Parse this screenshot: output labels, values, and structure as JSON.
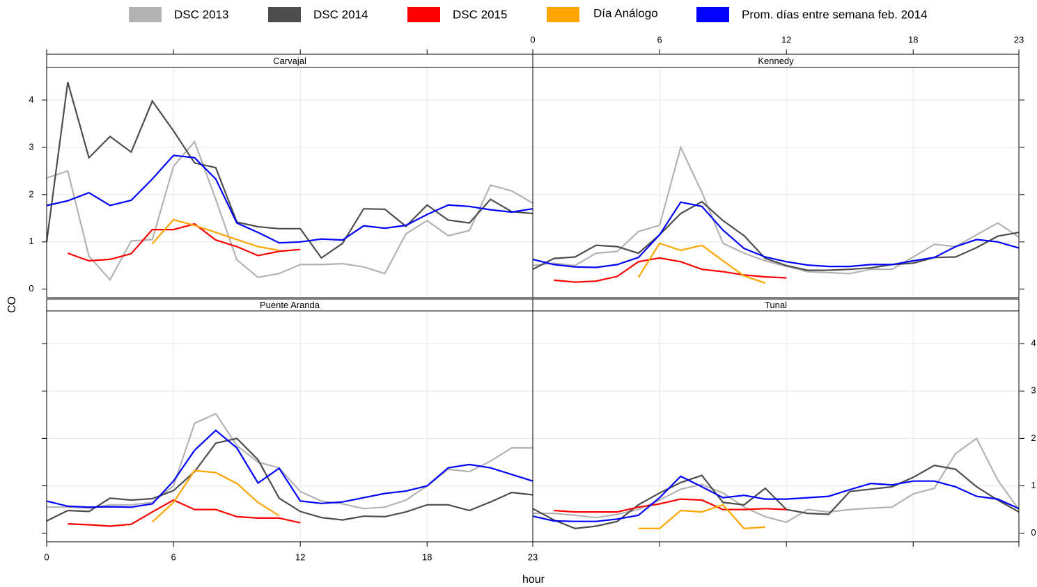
{
  "chart_data": {
    "type": "line",
    "xlabel": "hour",
    "ylabel": "CO",
    "x": [
      0,
      1,
      2,
      3,
      4,
      5,
      6,
      7,
      8,
      9,
      10,
      11,
      12,
      13,
      14,
      15,
      16,
      17,
      18,
      19,
      20,
      21,
      22,
      23
    ],
    "xlim": [
      0,
      23
    ],
    "xticks": [
      0,
      6,
      12,
      18,
      23
    ],
    "ylim": [
      -0.18,
      4.69
    ],
    "yticks": [
      0,
      1,
      2,
      3,
      4
    ],
    "grid": true,
    "series": [
      {
        "name": "DSC 2013",
        "color": "#b3b3b3"
      },
      {
        "name": "DSC 2014",
        "color": "#4d4d4d"
      },
      {
        "name": "DSC 2015",
        "color": "#ff0000"
      },
      {
        "name": "Día Análogo",
        "color": "#ffa500"
      },
      {
        "name": "Prom. días entre semana feb. 2014",
        "color": "#0000ff"
      }
    ],
    "panels": [
      {
        "title": "Carvajal",
        "values": [
          [
            2.35,
            2.5,
            0.7,
            0.2,
            1.02,
            1.05,
            2.6,
            3.12,
            1.9,
            0.62,
            0.25,
            0.33,
            0.52,
            0.52,
            0.54,
            0.47,
            0.33,
            1.17,
            1.45,
            1.13,
            1.24,
            2.2,
            2.08,
            1.82
          ],
          [
            1.0,
            4.38,
            2.78,
            3.23,
            2.9,
            3.98,
            3.35,
            2.67,
            2.57,
            1.42,
            1.32,
            1.28,
            1.28,
            0.66,
            0.97,
            1.7,
            1.69,
            1.33,
            1.78,
            1.46,
            1.4,
            1.9,
            1.64,
            1.6
          ],
          [
            null,
            0.76,
            0.6,
            0.63,
            0.75,
            1.26,
            1.26,
            1.38,
            1.04,
            0.9,
            0.71,
            0.8,
            0.84,
            null,
            null,
            null,
            null,
            null,
            null,
            null,
            null,
            null,
            null,
            null
          ],
          [
            null,
            null,
            null,
            null,
            null,
            0.96,
            1.47,
            1.35,
            1.2,
            1.05,
            0.9,
            0.82,
            null,
            null,
            null,
            null,
            null,
            null,
            null,
            null,
            null,
            null,
            null,
            null
          ],
          [
            1.77,
            1.87,
            2.04,
            1.77,
            1.88,
            2.33,
            2.83,
            2.78,
            2.33,
            1.4,
            1.2,
            0.98,
            1.0,
            1.06,
            1.04,
            1.34,
            1.29,
            1.35,
            1.58,
            1.78,
            1.75,
            1.68,
            1.63,
            1.7
          ]
        ]
      },
      {
        "title": "Kennedy",
        "values": [
          [
            0.5,
            0.55,
            0.5,
            0.76,
            0.8,
            1.22,
            1.35,
            3.0,
            2.05,
            0.97,
            0.76,
            0.6,
            0.48,
            0.37,
            0.35,
            0.33,
            0.42,
            0.42,
            0.68,
            0.95,
            0.9,
            1.15,
            1.4,
            1.1
          ],
          [
            0.42,
            0.65,
            0.68,
            0.93,
            0.9,
            0.76,
            1.15,
            1.6,
            1.85,
            1.45,
            1.13,
            0.65,
            0.5,
            0.4,
            0.4,
            0.42,
            0.45,
            0.52,
            0.55,
            0.67,
            0.68,
            0.88,
            1.12,
            1.2
          ],
          [
            null,
            0.19,
            0.15,
            0.17,
            0.27,
            0.58,
            0.66,
            0.58,
            0.42,
            0.37,
            0.3,
            0.26,
            0.24,
            null,
            null,
            null,
            null,
            null,
            null,
            null,
            null,
            null,
            null,
            null
          ],
          [
            null,
            null,
            null,
            null,
            null,
            0.25,
            0.97,
            0.82,
            0.93,
            0.6,
            0.28,
            0.13,
            null,
            null,
            null,
            null,
            null,
            null,
            null,
            null,
            null,
            null,
            null,
            null
          ],
          [
            0.63,
            0.52,
            0.47,
            0.46,
            0.52,
            0.67,
            1.15,
            1.84,
            1.75,
            1.25,
            0.86,
            0.68,
            0.58,
            0.51,
            0.48,
            0.48,
            0.52,
            0.52,
            0.6,
            0.67,
            0.9,
            1.05,
            1.0,
            0.87
          ]
        ]
      },
      {
        "title": "Puente Aranda",
        "values": [
          [
            0.55,
            0.55,
            0.53,
            0.6,
            0.6,
            0.65,
            1.0,
            2.32,
            2.52,
            1.85,
            1.5,
            1.38,
            0.88,
            0.68,
            0.62,
            0.52,
            0.55,
            0.7,
            1.0,
            1.35,
            1.3,
            1.52,
            1.8,
            1.8
          ],
          [
            0.26,
            0.48,
            0.46,
            0.74,
            0.7,
            0.73,
            0.9,
            1.3,
            1.9,
            2.0,
            1.55,
            0.74,
            0.46,
            0.33,
            0.28,
            0.36,
            0.35,
            0.45,
            0.6,
            0.6,
            0.48,
            0.66,
            0.86,
            0.81
          ],
          [
            null,
            0.2,
            0.18,
            0.15,
            0.19,
            0.45,
            0.7,
            0.5,
            0.5,
            0.35,
            0.32,
            0.32,
            0.22,
            null,
            null,
            null,
            null,
            null,
            null,
            null,
            null,
            null,
            null,
            null
          ],
          [
            null,
            null,
            null,
            null,
            null,
            0.24,
            0.65,
            1.32,
            1.28,
            1.05,
            0.65,
            0.37,
            null,
            null,
            null,
            null,
            null,
            null,
            null,
            null,
            null,
            null,
            null,
            null
          ],
          [
            0.68,
            0.57,
            0.55,
            0.56,
            0.55,
            0.62,
            1.1,
            1.75,
            2.17,
            1.8,
            1.06,
            1.37,
            0.68,
            0.63,
            0.66,
            0.75,
            0.84,
            0.89,
            1.0,
            1.38,
            1.45,
            1.38,
            1.24,
            1.1
          ]
        ]
      },
      {
        "title": "Tunal",
        "values": [
          [
            0.42,
            0.42,
            0.38,
            0.33,
            0.4,
            0.5,
            0.7,
            0.93,
            1.03,
            0.85,
            0.55,
            0.35,
            0.23,
            0.5,
            0.45,
            0.5,
            0.53,
            0.55,
            0.83,
            0.95,
            1.68,
            2.0,
            1.12,
            0.5
          ],
          [
            0.52,
            0.28,
            0.1,
            0.15,
            0.25,
            0.6,
            0.85,
            1.07,
            1.22,
            0.65,
            0.6,
            0.95,
            0.5,
            0.42,
            0.4,
            0.88,
            0.93,
            0.98,
            1.18,
            1.43,
            1.35,
            0.98,
            0.7,
            0.45
          ],
          [
            null,
            0.48,
            0.45,
            0.45,
            0.45,
            0.55,
            0.62,
            0.72,
            0.7,
            0.5,
            0.5,
            0.52,
            0.5,
            null,
            null,
            null,
            null,
            null,
            null,
            null,
            null,
            null,
            null,
            null
          ],
          [
            null,
            null,
            null,
            null,
            null,
            0.1,
            0.1,
            0.48,
            0.45,
            0.6,
            0.1,
            0.13,
            null,
            null,
            null,
            null,
            null,
            null,
            null,
            null,
            null,
            null,
            null,
            null
          ],
          [
            0.36,
            0.26,
            0.25,
            0.25,
            0.3,
            0.38,
            0.75,
            1.2,
            0.98,
            0.75,
            0.8,
            0.72,
            0.72,
            0.75,
            0.78,
            0.92,
            1.05,
            1.02,
            1.1,
            1.1,
            0.98,
            0.78,
            0.72,
            0.52
          ]
        ]
      }
    ]
  }
}
